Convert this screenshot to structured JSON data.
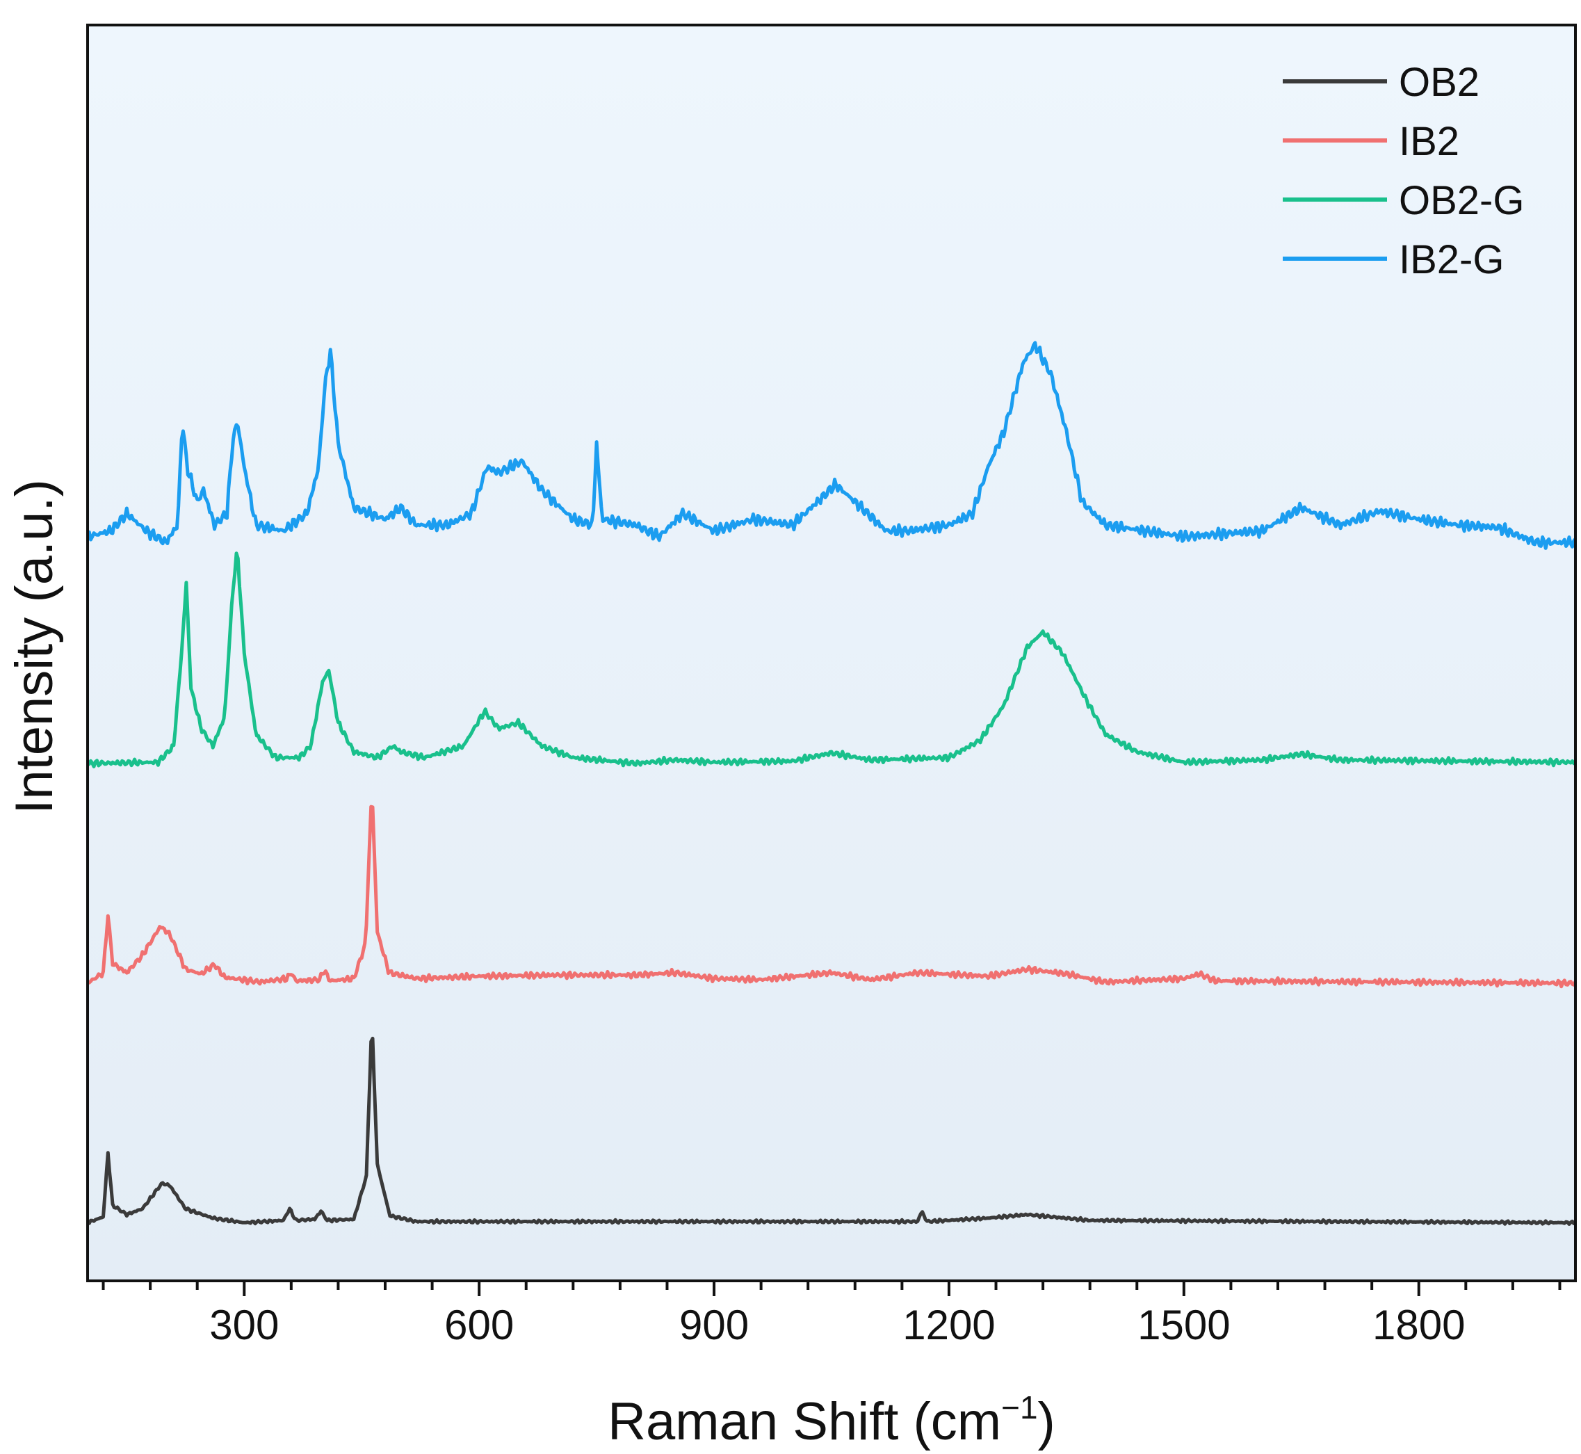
{
  "chart_data": {
    "type": "line",
    "title": "",
    "xlabel": "Raman Shift (cm",
    "xlabel_sup": "−1",
    "xlabel_close": ")",
    "ylabel": "Intensity (a.u.)",
    "xlim": [
      100,
      2000
    ],
    "ylim": [
      0,
      100
    ],
    "grid": false,
    "legend_position": "top-right",
    "x_major_ticks": [
      300,
      600,
      900,
      1200,
      1500,
      1800
    ],
    "x_tick_labels": [
      "300",
      "600",
      "900",
      "1200",
      "1500",
      "1800"
    ],
    "x_minor_tick_step": 60,
    "series": [
      {
        "name": "OB2",
        "color": "#3a3a3a",
        "baseline": 1,
        "noise": 0.15,
        "points": [
          [
            100,
            1
          ],
          [
            120,
            1.5
          ],
          [
            126,
            7
          ],
          [
            132,
            2.5
          ],
          [
            150,
            1.7
          ],
          [
            170,
            2.2
          ],
          [
            195,
            4.4
          ],
          [
            205,
            4.2
          ],
          [
            225,
            2.2
          ],
          [
            260,
            1.4
          ],
          [
            300,
            1
          ],
          [
            350,
            1.2
          ],
          [
            358,
            2.2
          ],
          [
            366,
            1.2
          ],
          [
            390,
            1.3
          ],
          [
            398,
            2
          ],
          [
            406,
            1.2
          ],
          [
            440,
            1.3
          ],
          [
            456,
            5
          ],
          [
            463,
            18.5
          ],
          [
            470,
            6
          ],
          [
            486,
            1.6
          ],
          [
            520,
            1.1
          ],
          [
            1160,
            1.1
          ],
          [
            1165,
            2
          ],
          [
            1172,
            1.1
          ],
          [
            1250,
            1.4
          ],
          [
            1300,
            1.7
          ],
          [
            1380,
            1.2
          ],
          [
            2000,
            1
          ]
        ]
      },
      {
        "name": "IB2",
        "color": "#f07070",
        "baseline": 21.5,
        "noise": 0.3,
        "points": [
          [
            100,
            21.6
          ],
          [
            120,
            22.5
          ],
          [
            126,
            27.5
          ],
          [
            132,
            23.3
          ],
          [
            150,
            22.5
          ],
          [
            170,
            24
          ],
          [
            193,
            26.5
          ],
          [
            205,
            25.8
          ],
          [
            225,
            22.8
          ],
          [
            245,
            22.4
          ],
          [
            262,
            23.2
          ],
          [
            275,
            22.1
          ],
          [
            320,
            21.7
          ],
          [
            355,
            22
          ],
          [
            360,
            22.5
          ],
          [
            366,
            21.8
          ],
          [
            396,
            21.9
          ],
          [
            402,
            22.7
          ],
          [
            410,
            21.8
          ],
          [
            440,
            22
          ],
          [
            455,
            25
          ],
          [
            463,
            38.5
          ],
          [
            470,
            26
          ],
          [
            485,
            22.5
          ],
          [
            520,
            22
          ],
          [
            600,
            22.2
          ],
          [
            700,
            22.3
          ],
          [
            800,
            22.3
          ],
          [
            850,
            22.5
          ],
          [
            900,
            22
          ],
          [
            960,
            21.9
          ],
          [
            1050,
            22.5
          ],
          [
            1100,
            21.9
          ],
          [
            1160,
            22.5
          ],
          [
            1250,
            22.2
          ],
          [
            1300,
            22.8
          ],
          [
            1350,
            22.4
          ],
          [
            1400,
            21.7
          ],
          [
            1500,
            22
          ],
          [
            1520,
            22.4
          ],
          [
            1540,
            21.8
          ],
          [
            2000,
            21.6
          ]
        ]
      },
      {
        "name": "OB2-G",
        "color": "#19c08c",
        "baseline": 40.5,
        "noise": 0.3,
        "points": [
          [
            100,
            40.5
          ],
          [
            190,
            40.6
          ],
          [
            210,
            42
          ],
          [
            220,
            50
          ],
          [
            226,
            56
          ],
          [
            232,
            47
          ],
          [
            245,
            43.5
          ],
          [
            260,
            42
          ],
          [
            275,
            44.5
          ],
          [
            285,
            55
          ],
          [
            291,
            59
          ],
          [
            300,
            50
          ],
          [
            315,
            43
          ],
          [
            340,
            41
          ],
          [
            370,
            41
          ],
          [
            385,
            42
          ],
          [
            400,
            47.5
          ],
          [
            408,
            48.5
          ],
          [
            420,
            44
          ],
          [
            440,
            41.5
          ],
          [
            470,
            41
          ],
          [
            490,
            42
          ],
          [
            500,
            41.5
          ],
          [
            530,
            41
          ],
          [
            580,
            42
          ],
          [
            607,
            45
          ],
          [
            625,
            43.5
          ],
          [
            650,
            44
          ],
          [
            680,
            42
          ],
          [
            720,
            41
          ],
          [
            800,
            40.5
          ],
          [
            850,
            40.8
          ],
          [
            900,
            40.6
          ],
          [
            1000,
            40.7
          ],
          [
            1050,
            41.4
          ],
          [
            1100,
            40.8
          ],
          [
            1200,
            41
          ],
          [
            1240,
            42.5
          ],
          [
            1270,
            45.5
          ],
          [
            1300,
            50.5
          ],
          [
            1320,
            51.8
          ],
          [
            1345,
            50
          ],
          [
            1375,
            46
          ],
          [
            1400,
            43
          ],
          [
            1440,
            41.5
          ],
          [
            1500,
            40.6
          ],
          [
            1600,
            40.8
          ],
          [
            1650,
            41.3
          ],
          [
            1700,
            40.8
          ],
          [
            2000,
            40.6
          ]
        ]
      },
      {
        "name": "IB2-G",
        "color": "#1b9df0",
        "baseline": 60,
        "noise": 0.55,
        "points": [
          [
            100,
            60
          ],
          [
            130,
            60.5
          ],
          [
            150,
            62
          ],
          [
            175,
            60.5
          ],
          [
            200,
            59.5
          ],
          [
            215,
            61
          ],
          [
            221,
            70
          ],
          [
            227,
            66
          ],
          [
            240,
            63
          ],
          [
            248,
            64
          ],
          [
            262,
            61
          ],
          [
            278,
            62
          ],
          [
            285,
            68
          ],
          [
            291,
            70
          ],
          [
            300,
            66
          ],
          [
            315,
            61
          ],
          [
            350,
            60.5
          ],
          [
            380,
            62
          ],
          [
            395,
            66
          ],
          [
            403,
            73
          ],
          [
            410,
            76
          ],
          [
            420,
            68
          ],
          [
            440,
            62.5
          ],
          [
            460,
            62
          ],
          [
            480,
            61.5
          ],
          [
            500,
            62.5
          ],
          [
            520,
            61
          ],
          [
            560,
            61
          ],
          [
            590,
            62
          ],
          [
            610,
            66
          ],
          [
            625,
            65.5
          ],
          [
            655,
            66.5
          ],
          [
            680,
            64
          ],
          [
            720,
            61.5
          ],
          [
            745,
            61
          ],
          [
            750,
            68
          ],
          [
            757,
            61.5
          ],
          [
            800,
            61
          ],
          [
            830,
            60
          ],
          [
            860,
            62
          ],
          [
            900,
            60.5
          ],
          [
            950,
            61.5
          ],
          [
            1000,
            61
          ],
          [
            1040,
            63.5
          ],
          [
            1055,
            64.5
          ],
          [
            1080,
            63
          ],
          [
            1120,
            60.5
          ],
          [
            1150,
            60.5
          ],
          [
            1200,
            61
          ],
          [
            1230,
            62
          ],
          [
            1250,
            66
          ],
          [
            1270,
            69
          ],
          [
            1295,
            75
          ],
          [
            1310,
            76.5
          ],
          [
            1330,
            74
          ],
          [
            1350,
            69
          ],
          [
            1370,
            63
          ],
          [
            1400,
            61
          ],
          [
            1450,
            60.5
          ],
          [
            1500,
            60
          ],
          [
            1600,
            60.5
          ],
          [
            1650,
            62.5
          ],
          [
            1700,
            61
          ],
          [
            1750,
            62.2
          ],
          [
            1800,
            61.5
          ],
          [
            1850,
            61
          ],
          [
            1900,
            60.8
          ],
          [
            1950,
            59.5
          ],
          [
            2000,
            59.5
          ]
        ]
      }
    ]
  }
}
